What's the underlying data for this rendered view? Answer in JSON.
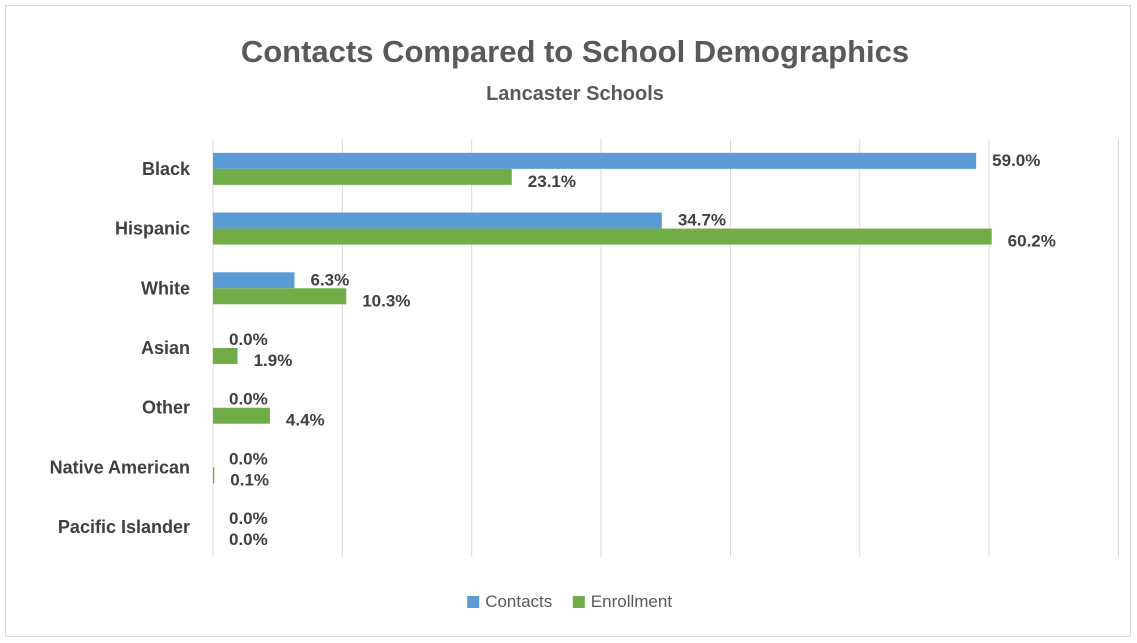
{
  "chart_data": {
    "type": "bar",
    "orientation": "horizontal",
    "title": "Contacts Compared to School Demographics",
    "subtitle": "Lancaster Schools",
    "categories": [
      "Black",
      "Hispanic",
      "White",
      "Asian",
      "Other",
      "Native American",
      "Pacific Islander"
    ],
    "series": [
      {
        "name": "Contacts",
        "color": "#5b9bd5",
        "values": [
          59.0,
          34.7,
          6.3,
          0.0,
          0.0,
          0.0,
          0.0
        ]
      },
      {
        "name": "Enrollment",
        "color": "#70ad47",
        "values": [
          23.1,
          60.2,
          10.3,
          1.9,
          4.4,
          0.1,
          0.0
        ]
      }
    ],
    "value_suffix": "%",
    "xlim": [
      0,
      70
    ],
    "gridline_step": 10,
    "grid": true,
    "show_x_tick_labels": false,
    "legend_position": "bottom"
  }
}
